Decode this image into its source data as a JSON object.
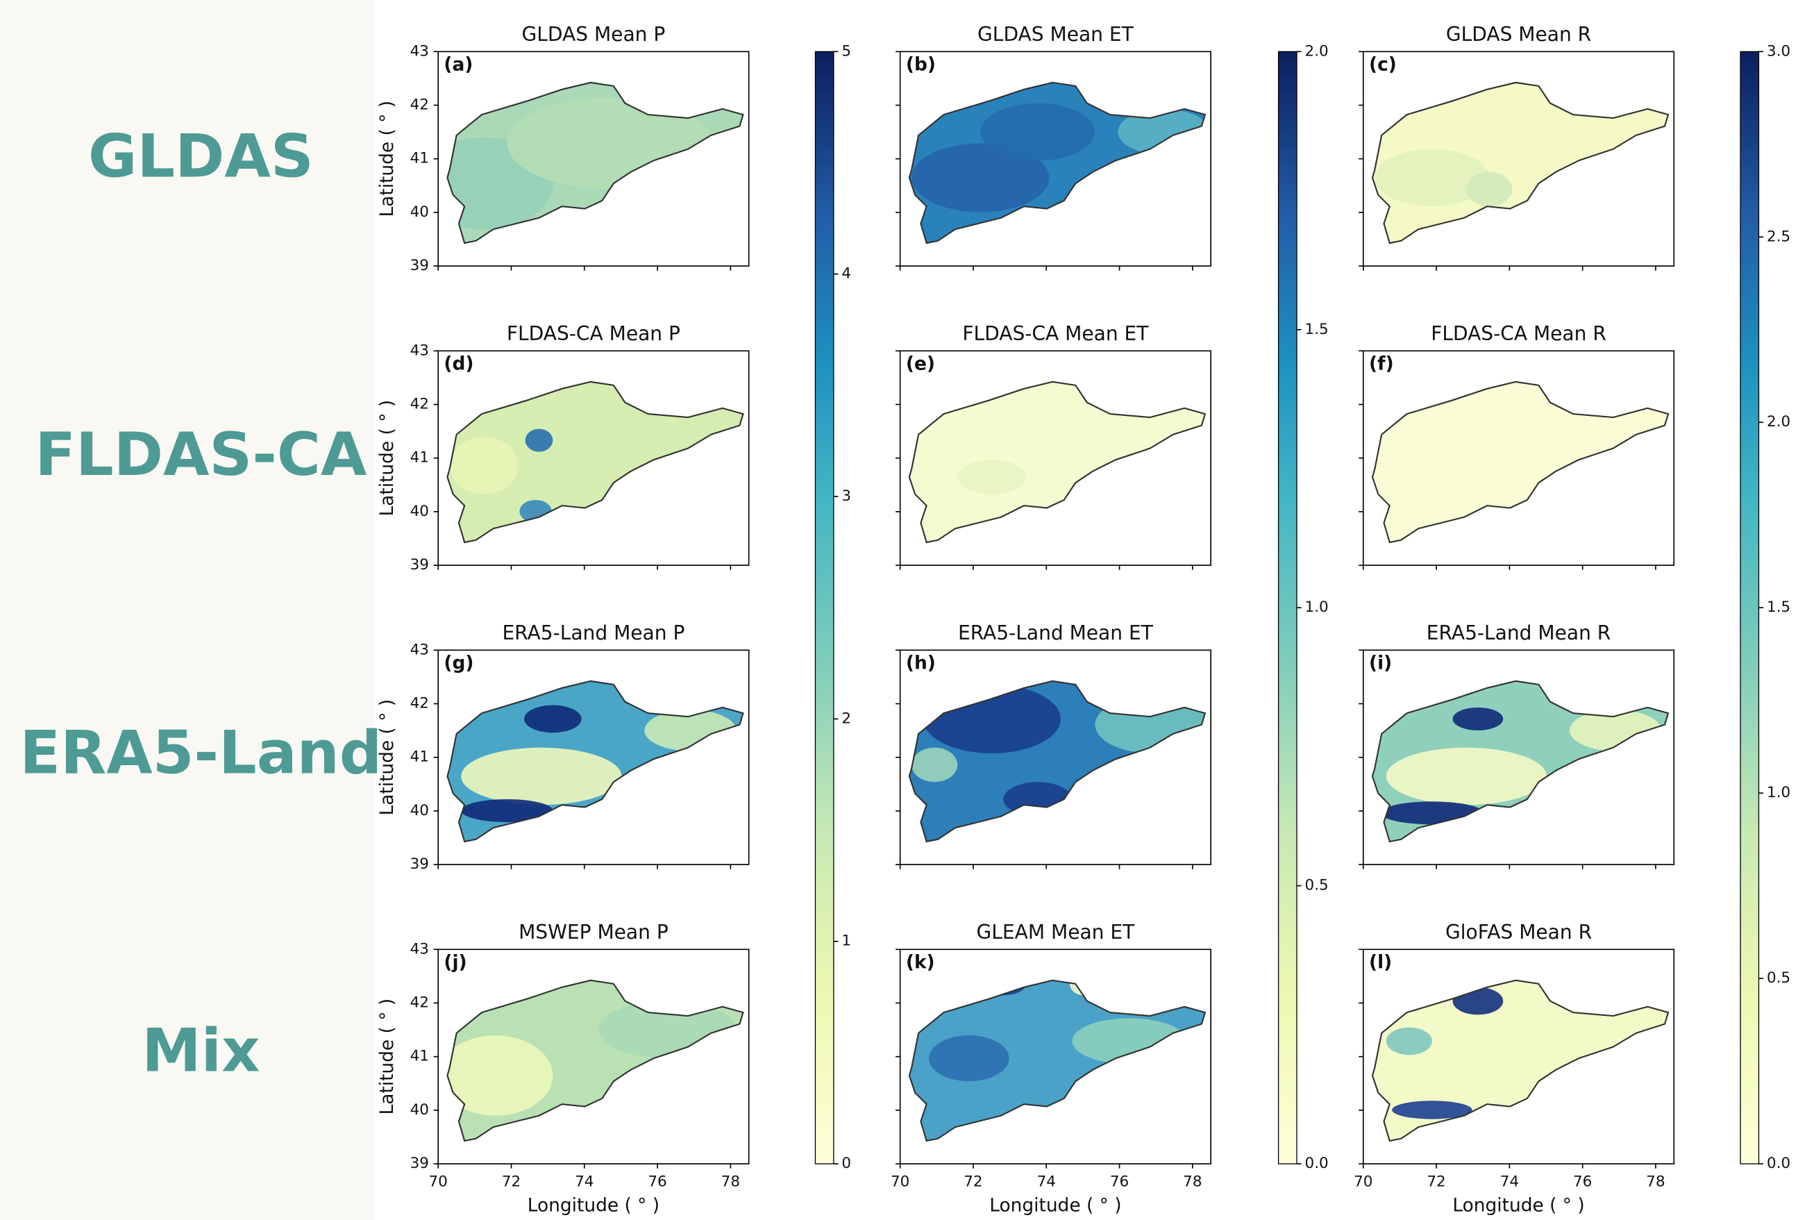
{
  "row_labels": [
    "GLDAS",
    "FLDAS-CA",
    "ERA5-Land",
    "Mix"
  ],
  "axes": {
    "xlabel": "Longitude ( ° )",
    "ylabel": "Latitude ( ° )",
    "xlim": [
      70,
      78.5
    ],
    "ylim": [
      39,
      43
    ],
    "xticks": [
      70,
      72,
      74,
      76,
      78
    ],
    "yticks": [
      39,
      40,
      41,
      42,
      43
    ]
  },
  "panels": [
    {
      "letter": "(a)",
      "title": "GLDAS Mean P"
    },
    {
      "letter": "(b)",
      "title": "GLDAS Mean ET"
    },
    {
      "letter": "(c)",
      "title": "GLDAS Mean R"
    },
    {
      "letter": "(d)",
      "title": "FLDAS-CA Mean P"
    },
    {
      "letter": "(e)",
      "title": "FLDAS-CA Mean ET"
    },
    {
      "letter": "(f)",
      "title": "FLDAS-CA Mean R"
    },
    {
      "letter": "(g)",
      "title": "ERA5-Land Mean P"
    },
    {
      "letter": "(h)",
      "title": "ERA5-Land Mean ET"
    },
    {
      "letter": "(i)",
      "title": "ERA5-Land Mean R"
    },
    {
      "letter": "(j)",
      "title": "MSWEP Mean P"
    },
    {
      "letter": "(k)",
      "title": "GLEAM Mean ET"
    },
    {
      "letter": "(l)",
      "title": "GloFAS Mean R"
    }
  ],
  "colorbars": [
    {
      "lim": [
        0,
        5
      ],
      "ticks": [
        0,
        1,
        2,
        3,
        4,
        5
      ]
    },
    {
      "lim": [
        0,
        2
      ],
      "ticks": [
        {
          "value": 0,
          "label": "0.0"
        },
        {
          "value": 0.5,
          "label": "0.5"
        },
        {
          "value": 1,
          "label": "1.0"
        },
        {
          "value": 1.5,
          "label": "1.5"
        },
        {
          "value": 2,
          "label": "2.0"
        }
      ]
    },
    {
      "lim": [
        0,
        3
      ],
      "ticks": [
        {
          "value": 0,
          "label": "0.0"
        },
        {
          "value": 0.5,
          "label": "0.5"
        },
        {
          "value": 1,
          "label": "1.0"
        },
        {
          "value": 1.5,
          "label": "1.5"
        },
        {
          "value": 2,
          "label": "2.0"
        },
        {
          "value": 2.5,
          "label": "2.5"
        },
        {
          "value": 3,
          "label": "3.0"
        }
      ]
    }
  ]
}
